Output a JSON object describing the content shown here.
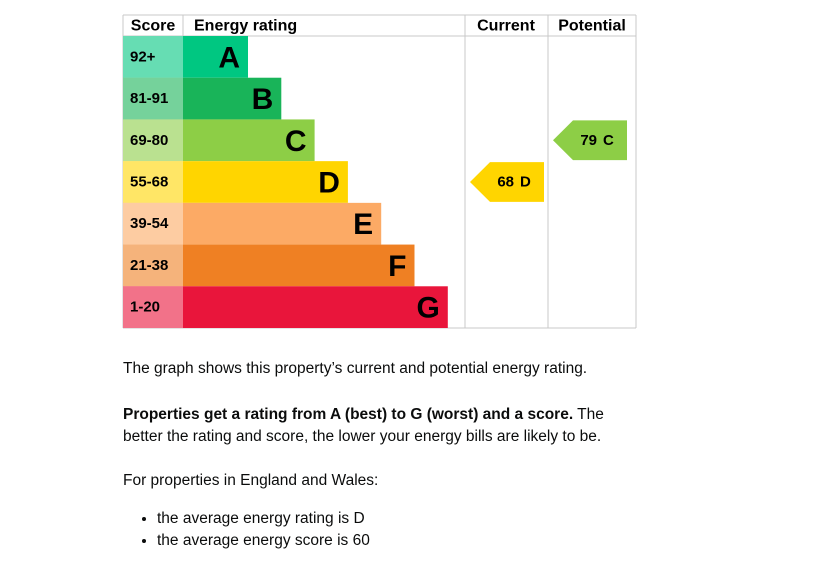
{
  "epc": {
    "headers": {
      "score": "Score",
      "rating": "Energy rating",
      "current": "Current",
      "potential": "Potential"
    },
    "bands": [
      {
        "score": "92+",
        "letter": "A",
        "color": "#00c781"
      },
      {
        "score": "81-91",
        "letter": "B",
        "color": "#19b459"
      },
      {
        "score": "69-80",
        "letter": "C",
        "color": "#8dce46"
      },
      {
        "score": "55-68",
        "letter": "D",
        "color": "#ffd500"
      },
      {
        "score": "39-54",
        "letter": "E",
        "color": "#fcaa65"
      },
      {
        "score": "21-38",
        "letter": "F",
        "color": "#ef8023"
      },
      {
        "score": "1-20",
        "letter": "G",
        "color": "#e9153b"
      }
    ],
    "current": {
      "score": 68,
      "letter": "D"
    },
    "potential": {
      "score": 79,
      "letter": "C"
    }
  },
  "text": {
    "intro": "The graph shows this property’s current and potential energy rating.",
    "rating_bold": "Properties get a rating from A (best) to G (worst) and a score.",
    "rating_rest": " The better the rating and score, the lower your energy bills are likely to be.",
    "england": "For properties in England and Wales:",
    "bullets": [
      "the average energy rating is D",
      "the average energy score is 60"
    ]
  }
}
